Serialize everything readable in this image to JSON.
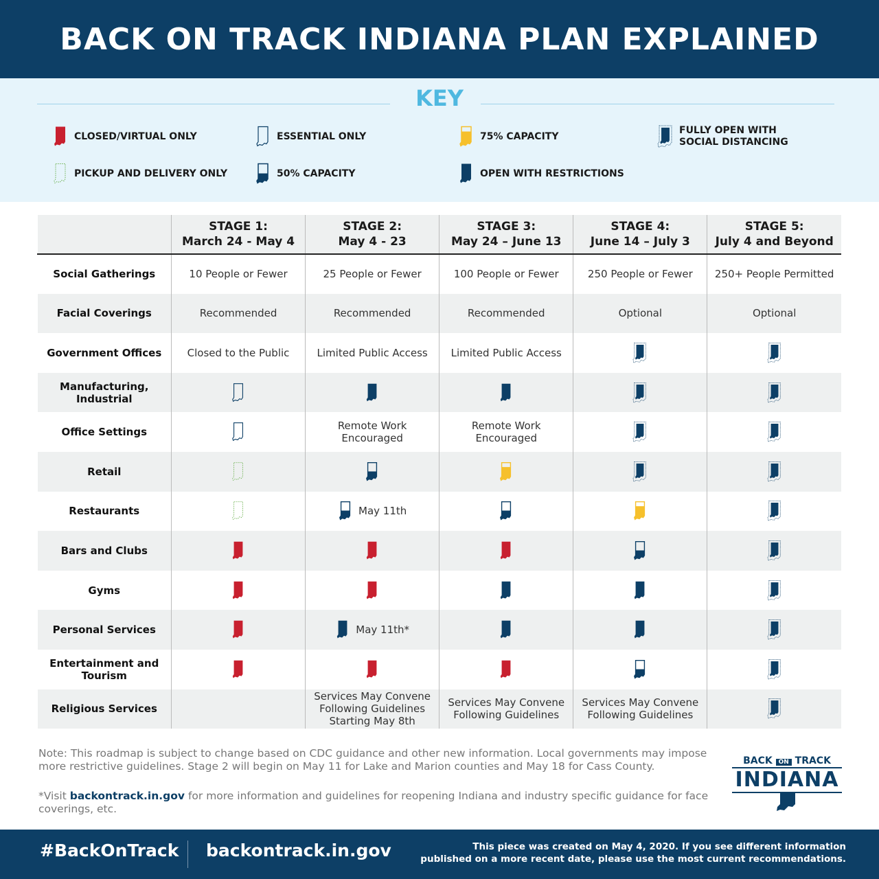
{
  "title": "BACK ON TRACK INDIANA PLAN EXPLAINED",
  "key": {
    "title": "KEY",
    "items": [
      {
        "icon": "closed",
        "label": "CLOSED/VIRTUAL ONLY"
      },
      {
        "icon": "essential",
        "label": "ESSENTIAL ONLY"
      },
      {
        "icon": "q75",
        "label": "75% CAPACITY"
      },
      {
        "icon": "full",
        "label": "FULLY OPEN WITH SOCIAL DISTANCING"
      },
      {
        "icon": "pickup",
        "label": "PICKUP AND DELIVERY ONLY"
      },
      {
        "icon": "half",
        "label": "50% CAPACITY"
      },
      {
        "icon": "restricted",
        "label": "OPEN WITH RESTRICTIONS"
      }
    ]
  },
  "colors": {
    "navy": "#0d3f66",
    "red": "#c8202f",
    "yellow": "#f6c02c",
    "green": "#6ab04c",
    "key": "#4fb8e0"
  },
  "table": {
    "headers": [
      {
        "l1": "",
        "l2": ""
      },
      {
        "l1": "STAGE 1:",
        "l2": "March 24 - May 4"
      },
      {
        "l1": "STAGE 2:",
        "l2": "May 4 - 23"
      },
      {
        "l1": "STAGE 3:",
        "l2": "May 24 – June 13"
      },
      {
        "l1": "STAGE 4:",
        "l2": "June 14 – July 3"
      },
      {
        "l1": "STAGE 5:",
        "l2": "July 4 and Beyond"
      }
    ],
    "rows": [
      {
        "label": "Social Gatherings",
        "cells": [
          {
            "text": "10 People or Fewer"
          },
          {
            "text": "25 People or Fewer"
          },
          {
            "text": "100 People or Fewer"
          },
          {
            "text": "250 People or Fewer"
          },
          {
            "text": "250+ People Permitted"
          }
        ]
      },
      {
        "label": "Facial Coverings",
        "cells": [
          {
            "text": "Recommended"
          },
          {
            "text": "Recommended"
          },
          {
            "text": "Recommended"
          },
          {
            "text": "Optional"
          },
          {
            "text": "Optional"
          }
        ]
      },
      {
        "label": "Government Offices",
        "cells": [
          {
            "text": "Closed to the Public"
          },
          {
            "text": "Limited Public Access"
          },
          {
            "text": "Limited Public Access"
          },
          {
            "icon": "full"
          },
          {
            "icon": "full"
          }
        ]
      },
      {
        "label": "Manufacturing, Industrial",
        "cells": [
          {
            "icon": "essential"
          },
          {
            "icon": "restricted"
          },
          {
            "icon": "restricted"
          },
          {
            "icon": "full"
          },
          {
            "icon": "full"
          }
        ]
      },
      {
        "label": "Office Settings",
        "cells": [
          {
            "icon": "essential"
          },
          {
            "text": "Remote Work Encouraged"
          },
          {
            "text": "Remote Work Encouraged"
          },
          {
            "icon": "full"
          },
          {
            "icon": "full"
          }
        ]
      },
      {
        "label": "Retail",
        "cells": [
          {
            "icon": "pickup"
          },
          {
            "icon": "half"
          },
          {
            "icon": "q75"
          },
          {
            "icon": "full"
          },
          {
            "icon": "full"
          }
        ]
      },
      {
        "label": "Restaurants",
        "cells": [
          {
            "icon": "pickup"
          },
          {
            "icon": "half",
            "text": "May 11th"
          },
          {
            "icon": "half"
          },
          {
            "icon": "q75"
          },
          {
            "icon": "full"
          }
        ]
      },
      {
        "label": "Bars and Clubs",
        "cells": [
          {
            "icon": "closed"
          },
          {
            "icon": "closed"
          },
          {
            "icon": "closed"
          },
          {
            "icon": "half"
          },
          {
            "icon": "full"
          }
        ]
      },
      {
        "label": "Gyms",
        "cells": [
          {
            "icon": "closed"
          },
          {
            "icon": "closed"
          },
          {
            "icon": "restricted"
          },
          {
            "icon": "restricted"
          },
          {
            "icon": "full"
          }
        ]
      },
      {
        "label": "Personal Services",
        "cells": [
          {
            "icon": "closed"
          },
          {
            "icon": "restricted",
            "text": "May 11th*"
          },
          {
            "icon": "restricted"
          },
          {
            "icon": "restricted"
          },
          {
            "icon": "full"
          }
        ]
      },
      {
        "label": "Entertainment and Tourism",
        "cells": [
          {
            "icon": "closed"
          },
          {
            "icon": "closed"
          },
          {
            "icon": "closed"
          },
          {
            "icon": "half"
          },
          {
            "icon": "full"
          }
        ]
      },
      {
        "label": "Religious Services",
        "cells": [
          {},
          {
            "text": "Services May Convene Following Guidelines Starting May 8th"
          },
          {
            "text": "Services May Convene Following Guidelines"
          },
          {
            "text": "Services May Convene Following Guidelines"
          },
          {
            "icon": "full"
          }
        ]
      }
    ]
  },
  "note": "Note: This roadmap is subject to change based on CDC guidance and other new information. Local governments may impose more restrictive guidelines. Stage 2 will begin on May 11 for Lake and Marion counties and May 18 for Cass County.",
  "visit": {
    "prefix": "*Visit ",
    "link": "backontrack.in.gov",
    "suffix": " for more information and guidelines for reopening Indiana and industry specific guidance for face coverings, etc."
  },
  "logo": {
    "top_left": "BACK",
    "mid": "ON",
    "top_right": "TRACK",
    "main": "INDIANA"
  },
  "footer": {
    "hashtag": "#BackOnTrack",
    "url": "backontrack.in.gov",
    "disclaimer_l1": "This piece was created on May 4, 2020. If you see different information",
    "disclaimer_l2": "published on a more recent date, please use the most current recommendations."
  }
}
